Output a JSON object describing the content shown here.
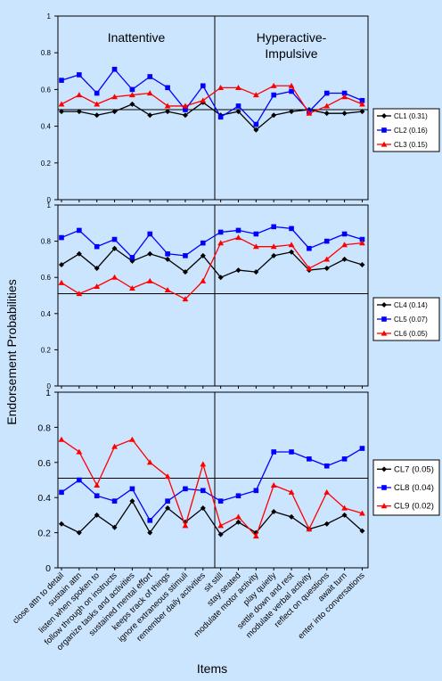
{
  "figure": {
    "y_axis_label": "Endorsement Probabilities",
    "x_axis_label": "Items"
  },
  "chart_data": [
    {
      "type": "line",
      "panel": "top",
      "annotations": [
        "Inattentive",
        "Hyperactive-",
        "Impulsive"
      ],
      "ylim": [
        0,
        1
      ],
      "yticks": [
        "0",
        "0.2",
        "0.4",
        "0.6",
        "0.8",
        "1"
      ],
      "reference_line": 0.49,
      "grid": false,
      "legend_position": "right",
      "series": [
        {
          "name": "CL1 (0.31)",
          "color": "#000000",
          "marker": "diamond",
          "values": [
            0.48,
            0.48,
            0.46,
            0.48,
            0.52,
            0.46,
            0.48,
            0.46,
            0.53,
            0.46,
            0.48,
            0.38,
            0.46,
            0.48,
            0.49,
            0.47,
            0.47,
            0.48
          ]
        },
        {
          "name": "CL2 (0.16)",
          "color": "#0000ff",
          "marker": "square",
          "values": [
            0.65,
            0.68,
            0.58,
            0.71,
            0.6,
            0.67,
            0.61,
            0.49,
            0.62,
            0.45,
            0.51,
            0.41,
            0.57,
            0.59,
            0.48,
            0.58,
            0.58,
            0.54
          ]
        },
        {
          "name": "CL3 (0.15)",
          "color": "#ff0000",
          "marker": "triangle",
          "values": [
            0.52,
            0.57,
            0.52,
            0.56,
            0.57,
            0.58,
            0.51,
            0.51,
            0.54,
            0.61,
            0.61,
            0.57,
            0.62,
            0.62,
            0.47,
            0.51,
            0.56,
            0.52
          ]
        }
      ]
    },
    {
      "type": "line",
      "panel": "middle",
      "ylim": [
        0,
        1
      ],
      "yticks": [
        "0",
        "0.2",
        "0.4",
        "0.6",
        "0.8",
        "1"
      ],
      "reference_line": 0.51,
      "grid": false,
      "legend_position": "right",
      "series": [
        {
          "name": "CL4 (0.14)",
          "color": "#000000",
          "marker": "diamond",
          "values": [
            0.67,
            0.73,
            0.65,
            0.76,
            0.69,
            0.73,
            0.7,
            0.63,
            0.72,
            0.6,
            0.64,
            0.63,
            0.72,
            0.74,
            0.64,
            0.65,
            0.7,
            0.67
          ]
        },
        {
          "name": "CL5 (0.07)",
          "color": "#0000ff",
          "marker": "square",
          "values": [
            0.82,
            0.86,
            0.77,
            0.81,
            0.71,
            0.84,
            0.73,
            0.72,
            0.79,
            0.85,
            0.86,
            0.84,
            0.88,
            0.87,
            0.76,
            0.8,
            0.84,
            0.81
          ]
        },
        {
          "name": "CL6 (0.05)",
          "color": "#ff0000",
          "marker": "triangle",
          "values": [
            0.57,
            0.51,
            0.55,
            0.6,
            0.54,
            0.58,
            0.53,
            0.48,
            0.58,
            0.79,
            0.82,
            0.77,
            0.77,
            0.78,
            0.65,
            0.7,
            0.78,
            0.79
          ]
        }
      ]
    },
    {
      "type": "line",
      "panel": "bottom",
      "ylim": [
        0,
        1
      ],
      "yticks": [
        "0",
        "0.2",
        "0.4",
        "0.6",
        "0.8",
        "1"
      ],
      "reference_line": 0.51,
      "grid": false,
      "legend_position": "right",
      "categories": [
        "close attn to detail",
        "sustain attn",
        "listen when spoken to",
        "follow through on instructs",
        "organize tasks and activities",
        "sustained mental effort",
        "keeps track of things",
        "ignore extraneous stimuli",
        "remember daily activities",
        "sit still",
        "stay seated",
        "modulate motor activity",
        "play quietly",
        "settle down and rest",
        "modulate verbal activity",
        "reflect on questions",
        "await turn",
        "enter into conversations"
      ],
      "series": [
        {
          "name": "CL7 (0.05)",
          "color": "#000000",
          "marker": "diamond",
          "values": [
            0.25,
            0.2,
            0.3,
            0.23,
            0.38,
            0.2,
            0.34,
            0.26,
            0.34,
            0.19,
            0.26,
            0.2,
            0.32,
            0.29,
            0.22,
            0.25,
            0.3,
            0.21
          ]
        },
        {
          "name": "CL8 (0.04)",
          "color": "#0000ff",
          "marker": "square",
          "values": [
            0.43,
            0.5,
            0.41,
            0.38,
            0.45,
            0.27,
            0.38,
            0.45,
            0.44,
            0.38,
            0.41,
            0.44,
            0.66,
            0.66,
            0.62,
            0.58,
            0.62,
            0.68
          ]
        },
        {
          "name": "CL9 (0.02)",
          "color": "#ff0000",
          "marker": "triangle",
          "values": [
            0.73,
            0.66,
            0.47,
            0.69,
            0.73,
            0.6,
            0.52,
            0.24,
            0.59,
            0.24,
            0.29,
            0.18,
            0.47,
            0.43,
            0.22,
            0.43,
            0.34,
            0.31
          ]
        }
      ]
    }
  ]
}
